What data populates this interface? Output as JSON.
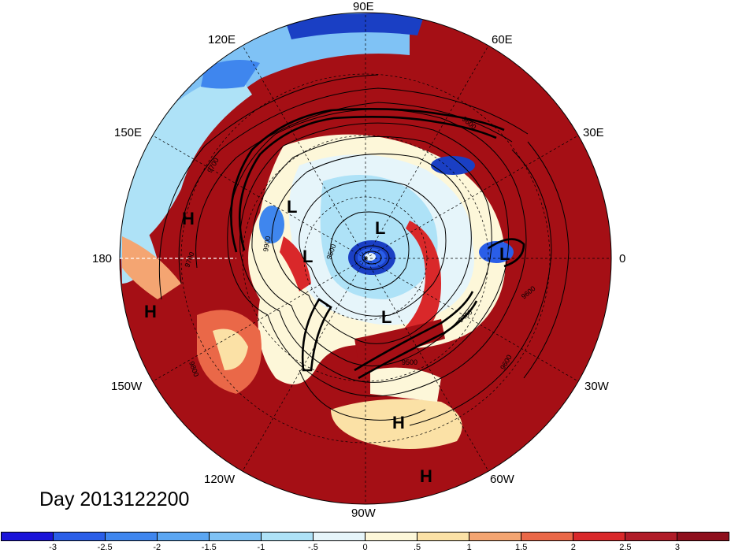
{
  "map": {
    "title": "Day 2013122200",
    "longitude_labels": {
      "n90e": "90E",
      "n60e": "60E",
      "n30e": "30E",
      "n0": "0",
      "n30w": "30W",
      "n60w": "60W",
      "n90w": "90W",
      "n120w": "120W",
      "n150w": "150W",
      "n180": "180",
      "n150e": "150E",
      "n120e": "120E"
    },
    "pressure_systems": [
      "H",
      "L",
      "L",
      "L",
      "L",
      "L",
      "H",
      "H",
      "H"
    ],
    "contour_labels": [
      "9700",
      "9600",
      "9500",
      "9400",
      "9800",
      "9900"
    ],
    "colors": {
      "strong_warm": "#a50f15",
      "warm": "#e0352b",
      "cool": "#4a90e2",
      "strong_cool": "#1a3fc4"
    }
  },
  "legend": {
    "ticks": [
      "-3",
      "-2.5",
      "-2",
      "-1.5",
      "-1",
      "-.5",
      "0",
      ".5",
      "1",
      "1.5",
      "2",
      "2.5",
      "3"
    ],
    "colors": [
      "#1a14d9",
      "#2a5ee8",
      "#3f86ee",
      "#5ba6f2",
      "#7fc2f5",
      "#aee2f7",
      "#e6f5fa",
      "#fdf7d9",
      "#fbe1a6",
      "#f4a572",
      "#ea6848",
      "#d9282a",
      "#b01c28",
      "#8e0f1c"
    ]
  }
}
